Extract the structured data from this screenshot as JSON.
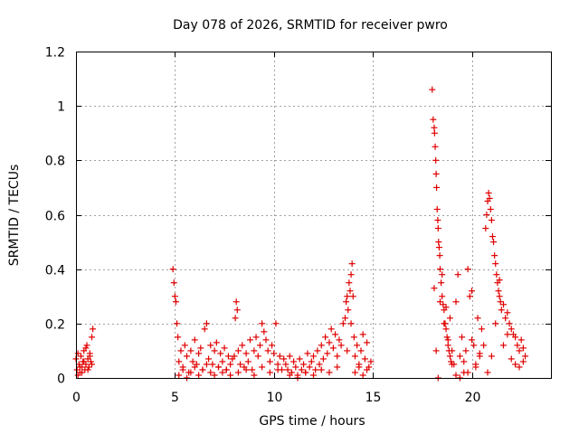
{
  "chart_data": {
    "type": "scatter",
    "title": "Day 078 of 2026, SRMTID for receiver pwro",
    "xlabel": "GPS time / hours",
    "ylabel": "SRMTID / TECUs",
    "xlim": [
      0,
      24
    ],
    "ylim": [
      0,
      1.2
    ],
    "grid": true,
    "x_ticks": [
      0,
      5,
      10,
      15,
      20
    ],
    "x_tick_labels": [
      "0",
      "5",
      "10",
      "15",
      "20"
    ],
    "y_ticks": [
      0,
      0.2,
      0.4,
      0.6,
      0.8,
      1.0,
      1.2
    ],
    "y_tick_labels": [
      "0",
      "0.2",
      "0.4",
      "0.6",
      "0.8",
      "1",
      "1.2"
    ],
    "marker": "+",
    "marker_color": "#e00000",
    "series": [
      {
        "name": "SRMTID",
        "x": [
          0.0,
          0.05,
          0.1,
          0.15,
          0.2,
          0.25,
          0.3,
          0.35,
          0.4,
          0.45,
          0.5,
          0.55,
          0.6,
          0.65,
          0.7,
          0.75,
          0.8,
          0.85,
          0.1,
          0.2,
          0.3,
          0.4,
          0.5,
          0.6,
          0.7,
          0.8,
          4.9,
          4.95,
          5.0,
          5.05,
          5.1,
          5.15,
          5.2,
          5.3,
          5.4,
          5.5,
          5.6,
          5.7,
          5.8,
          5.9,
          6.0,
          6.1,
          6.2,
          6.3,
          6.4,
          6.5,
          6.6,
          6.7,
          6.8,
          6.9,
          7.0,
          7.1,
          7.2,
          7.3,
          7.4,
          7.5,
          7.6,
          7.7,
          7.8,
          7.9,
          5.2,
          5.4,
          5.6,
          5.8,
          6.0,
          6.2,
          6.4,
          6.6,
          6.8,
          7.0,
          7.2,
          7.4,
          7.6,
          7.8,
          8.0,
          8.05,
          8.1,
          8.15,
          8.2,
          8.3,
          8.4,
          8.5,
          8.6,
          8.7,
          8.8,
          8.9,
          9.0,
          9.1,
          9.2,
          9.3,
          9.4,
          9.5,
          9.6,
          9.7,
          9.8,
          9.9,
          10.0,
          10.1,
          10.2,
          10.3,
          10.4,
          10.5,
          8.2,
          8.6,
          9.0,
          9.4,
          9.8,
          10.2,
          10.6,
          10.7,
          10.8,
          10.9,
          11.0,
          11.1,
          11.2,
          11.3,
          11.4,
          11.5,
          11.6,
          11.7,
          11.8,
          11.9,
          12.0,
          12.1,
          12.2,
          12.3,
          12.4,
          12.5,
          12.6,
          12.7,
          12.8,
          12.9,
          13.0,
          13.1,
          13.2,
          13.3,
          13.4,
          13.5,
          10.8,
          11.2,
          11.6,
          12.0,
          12.4,
          12.8,
          13.2,
          13.6,
          13.65,
          13.7,
          13.75,
          13.8,
          13.85,
          13.9,
          13.95,
          14.0,
          14.05,
          14.1,
          14.2,
          14.3,
          14.4,
          14.5,
          14.6,
          14.7,
          14.8,
          14.9,
          13.7,
          13.9,
          14.1,
          14.3,
          14.5,
          14.7,
          18.0,
          18.05,
          18.1,
          18.12,
          18.15,
          18.18,
          18.2,
          18.22,
          18.25,
          18.28,
          18.3,
          18.32,
          18.35,
          18.38,
          18.4,
          18.45,
          18.5,
          18.55,
          18.6,
          18.65,
          18.7,
          18.75,
          18.8,
          18.85,
          18.9,
          18.95,
          19.0,
          18.1,
          18.2,
          18.3,
          18.4,
          18.5,
          18.6,
          18.7,
          18.8,
          18.9,
          19.0,
          19.1,
          19.2,
          19.3,
          19.4,
          19.5,
          19.6,
          19.7,
          19.8,
          19.9,
          20.0,
          20.1,
          20.2,
          20.3,
          20.4,
          20.5,
          20.6,
          19.2,
          19.4,
          19.6,
          19.8,
          20.0,
          20.2,
          20.4,
          20.7,
          20.75,
          20.8,
          20.85,
          20.9,
          20.95,
          21.0,
          21.05,
          21.1,
          21.15,
          21.2,
          21.25,
          21.3,
          21.35,
          21.4,
          21.45,
          21.5,
          21.6,
          21.7,
          21.8,
          21.9,
          22.0,
          22.1,
          22.2,
          22.3,
          22.4,
          22.5,
          22.6,
          22.7,
          20.8,
          21.0,
          21.2,
          21.4,
          21.6,
          21.8,
          22.0,
          22.2,
          22.4,
          22.6
        ],
        "y": [
          0.07,
          0.03,
          0.09,
          0.05,
          0.02,
          0.08,
          0.04,
          0.06,
          0.1,
          0.03,
          0.05,
          0.12,
          0.07,
          0.04,
          0.09,
          0.06,
          0.15,
          0.18,
          0.01,
          0.04,
          0.02,
          0.06,
          0.11,
          0.03,
          0.08,
          0.05,
          0.4,
          0.35,
          0.3,
          0.28,
          0.2,
          0.15,
          0.06,
          0.1,
          0.04,
          0.12,
          0.08,
          0.02,
          0.1,
          0.06,
          0.14,
          0.05,
          0.09,
          0.11,
          0.03,
          0.18,
          0.2,
          0.07,
          0.12,
          0.05,
          0.1,
          0.13,
          0.04,
          0.09,
          0.06,
          0.11,
          0.03,
          0.08,
          0.05,
          0.07,
          0.01,
          0.03,
          0.0,
          0.02,
          0.04,
          0.01,
          0.03,
          0.05,
          0.02,
          0.01,
          0.04,
          0.02,
          0.03,
          0.01,
          0.08,
          0.22,
          0.28,
          0.25,
          0.1,
          0.05,
          0.12,
          0.04,
          0.09,
          0.06,
          0.14,
          0.03,
          0.1,
          0.15,
          0.08,
          0.12,
          0.2,
          0.17,
          0.14,
          0.1,
          0.06,
          0.12,
          0.09,
          0.2,
          0.05,
          0.08,
          0.03,
          0.07,
          0.02,
          0.03,
          0.01,
          0.04,
          0.02,
          0.03,
          0.05,
          0.03,
          0.08,
          0.02,
          0.06,
          0.04,
          0.01,
          0.07,
          0.03,
          0.05,
          0.02,
          0.09,
          0.04,
          0.06,
          0.08,
          0.03,
          0.1,
          0.05,
          0.12,
          0.07,
          0.15,
          0.09,
          0.13,
          0.18,
          0.11,
          0.16,
          0.08,
          0.14,
          0.12,
          0.2,
          0.01,
          0.0,
          0.02,
          0.01,
          0.03,
          0.02,
          0.04,
          0.22,
          0.28,
          0.3,
          0.25,
          0.35,
          0.32,
          0.38,
          0.42,
          0.3,
          0.15,
          0.08,
          0.12,
          0.05,
          0.1,
          0.16,
          0.07,
          0.13,
          0.04,
          0.06,
          0.1,
          0.2,
          0.02,
          0.04,
          0.01,
          0.03,
          1.06,
          0.95,
          0.92,
          0.9,
          0.85,
          0.8,
          0.75,
          0.7,
          0.62,
          0.58,
          0.55,
          0.5,
          0.48,
          0.45,
          0.4,
          0.35,
          0.3,
          0.27,
          0.25,
          0.2,
          0.18,
          0.15,
          0.12,
          0.1,
          0.08,
          0.06,
          0.05,
          0.33,
          0.1,
          0.0,
          0.28,
          0.38,
          0.2,
          0.26,
          0.14,
          0.22,
          0.1,
          0.05,
          0.28,
          0.38,
          0.08,
          0.15,
          0.02,
          0.1,
          0.4,
          0.3,
          0.32,
          0.12,
          0.05,
          0.22,
          0.08,
          0.18,
          0.12,
          0.01,
          0.0,
          0.06,
          0.02,
          0.14,
          0.04,
          0.09,
          0.55,
          0.6,
          0.65,
          0.68,
          0.66,
          0.62,
          0.58,
          0.52,
          0.5,
          0.45,
          0.42,
          0.38,
          0.35,
          0.32,
          0.3,
          0.28,
          0.25,
          0.27,
          0.22,
          0.24,
          0.2,
          0.18,
          0.16,
          0.15,
          0.12,
          0.1,
          0.14,
          0.11,
          0.08,
          0.02,
          0.08,
          0.2,
          0.36,
          0.12,
          0.16,
          0.07,
          0.05,
          0.04,
          0.06
        ]
      }
    ]
  }
}
